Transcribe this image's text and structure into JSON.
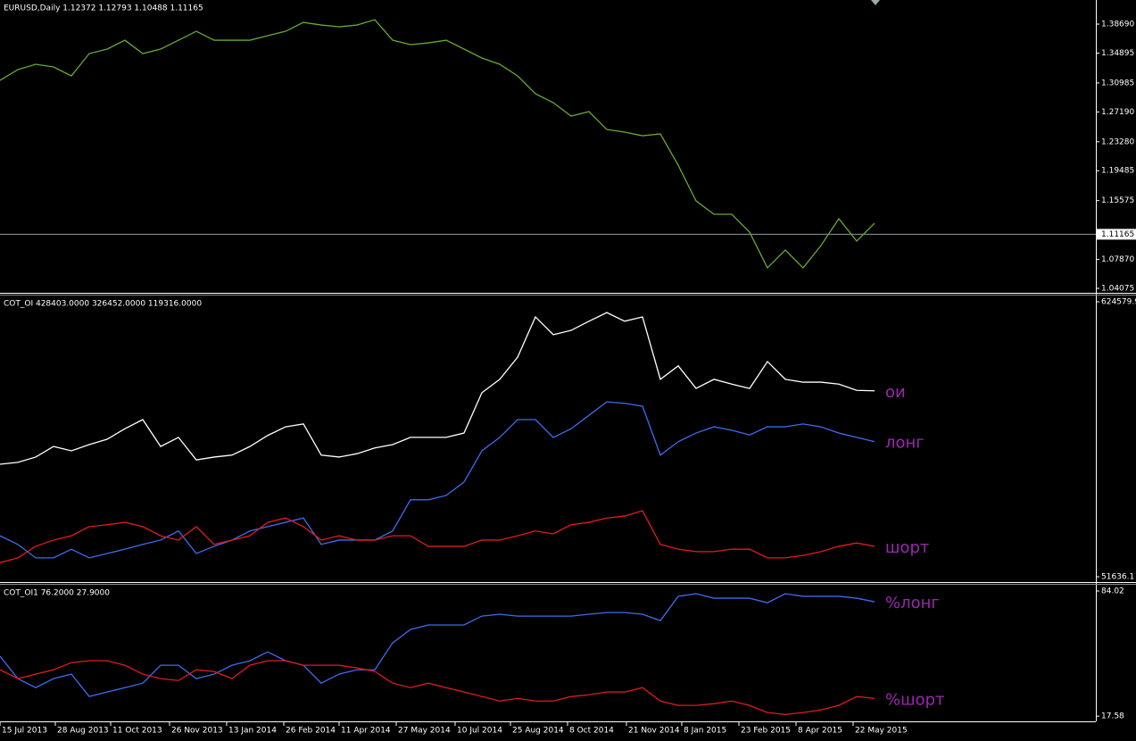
{
  "chart_data": [
    {
      "type": "line",
      "title": "EURUSD,Daily  1.12372 1.12793 1.10488 1.11165",
      "x": [
        0,
        10,
        20,
        30,
        40,
        50,
        60,
        70,
        80,
        90,
        100,
        110,
        120,
        130,
        140,
        150,
        160,
        170,
        180,
        190,
        200,
        210,
        220,
        230,
        240,
        250,
        260,
        270,
        280,
        290,
        300,
        310,
        320,
        330,
        340,
        350,
        360,
        370,
        380,
        390,
        400,
        410,
        420,
        430,
        440,
        450,
        460,
        470,
        480,
        490
      ],
      "values": [
        1.3132,
        1.3273,
        1.3343,
        1.3308,
        1.3191,
        1.3483,
        1.3542,
        1.3658,
        1.3483,
        1.3542,
        1.3658,
        1.3775,
        1.3658,
        1.3658,
        1.3658,
        1.3717,
        1.3775,
        1.3892,
        1.3857,
        1.3834,
        1.3857,
        1.3927,
        1.3658,
        1.36,
        1.3623,
        1.3658,
        1.3542,
        1.3425,
        1.3343,
        1.3191,
        1.2957,
        1.284,
        1.2664,
        1.2723,
        1.2489,
        1.2454,
        1.2407,
        1.2431,
        1.2021,
        1.1553,
        1.1378,
        1.1378,
        1.1144,
        1.0676,
        1.091,
        1.0676,
        1.0969,
        1.132,
        1.1027,
        1.1261
      ],
      "color": "#66aa33",
      "price_line": 1.11165,
      "xlim": [
        0,
        614
      ],
      "ylim": [
        1.0361,
        1.4185
      ],
      "yticks": [
        {
          "value": 1.3869,
          "label": "1.38690"
        },
        1.34895,
        1.30985,
        {
          "value": 1.2719,
          "label": "1.27190"
        },
        {
          "value": 1.2328,
          "label": "1.23280"
        },
        1.19485,
        1.15575,
        1.11165,
        {
          "value": 1.0787,
          "label": "1.07870"
        },
        1.04075
      ]
    },
    {
      "type": "line",
      "title": "COT_OI 428403.0000 326452.0000 119316.0000",
      "x": [
        0,
        10,
        20,
        30,
        40,
        50,
        60,
        70,
        80,
        90,
        100,
        110,
        120,
        130,
        140,
        150,
        160,
        170,
        180,
        190,
        200,
        210,
        220,
        230,
        240,
        250,
        260,
        270,
        280,
        290,
        300,
        310,
        320,
        330,
        340,
        350,
        360,
        370,
        380,
        390,
        400,
        410,
        420,
        430,
        440,
        450,
        460,
        470,
        480,
        490
      ],
      "series": [
        {
          "name": "ои",
          "color": "#ffffff",
          "values": [
            286000,
            290000,
            301000,
            323000,
            314000,
            327000,
            338000,
            360000,
            379000,
            323000,
            342000,
            295000,
            301000,
            305000,
            323000,
            346000,
            364000,
            370000,
            305000,
            301000,
            308000,
            320000,
            327000,
            342000,
            342000,
            342000,
            351000,
            435000,
            463000,
            509000,
            593000,
            556000,
            565000,
            584000,
            602000,
            584000,
            593000,
            463000,
            491000,
            444000,
            463000,
            453000,
            444000,
            500000,
            463000,
            457000,
            457000,
            453000,
            440000,
            439000
          ]
        },
        {
          "name": "лонг",
          "color": "#3d6cf0",
          "values": [
            137000,
            119000,
            91000,
            91000,
            109000,
            91000,
            100000,
            109000,
            119000,
            128000,
            147000,
            100000,
            115000,
            128000,
            147000,
            156000,
            165000,
            174000,
            119000,
            128000,
            128000,
            128000,
            147000,
            212000,
            212000,
            221000,
            249000,
            314000,
            342000,
            379000,
            379000,
            342000,
            360000,
            388000,
            416000,
            413000,
            407000,
            305000,
            333000,
            351000,
            364000,
            357000,
            347000,
            364000,
            364000,
            370000,
            364000,
            351000,
            342000,
            333000
          ]
        },
        {
          "name": "шорт",
          "color": "#e31b1b",
          "values": [
            81000,
            91000,
            115000,
            128000,
            137000,
            156000,
            160000,
            165000,
            156000,
            137000,
            128000,
            156000,
            119000,
            128000,
            137000,
            165000,
            174000,
            156000,
            128000,
            137000,
            128000,
            128000,
            137000,
            137000,
            115000,
            115000,
            115000,
            128000,
            128000,
            137000,
            147000,
            141000,
            160000,
            165000,
            174000,
            178000,
            189000,
            119000,
            109000,
            104000,
            104000,
            109000,
            109000,
            91000,
            91000,
            96000,
            104000,
            115000,
            122000,
            115000
          ]
        }
      ],
      "label_color": "#9c27b0",
      "xlim": [
        0,
        614
      ],
      "ylim": [
        40475,
        637600
      ],
      "yticks": [
        624579.9,
        51636.1
      ]
    },
    {
      "type": "line",
      "title": "COT_OI1 76.2000 27.9000",
      "x": [
        0,
        10,
        20,
        30,
        40,
        50,
        60,
        70,
        80,
        90,
        100,
        110,
        120,
        130,
        140,
        150,
        160,
        170,
        180,
        190,
        200,
        210,
        220,
        230,
        240,
        250,
        260,
        270,
        280,
        290,
        300,
        310,
        320,
        330,
        340,
        350,
        360,
        370,
        380,
        390,
        400,
        410,
        420,
        430,
        440,
        450,
        460,
        470,
        480,
        490
      ],
      "series": [
        {
          "name": "%лонг",
          "color": "#3d6cf0",
          "values": [
            49.4,
            37.5,
            32.7,
            37.5,
            39.9,
            28.0,
            30.4,
            32.7,
            35.1,
            44.6,
            44.6,
            37.5,
            39.9,
            44.6,
            47.0,
            51.7,
            47.0,
            44.6,
            35.1,
            39.9,
            42.2,
            42.2,
            56.5,
            63.6,
            66.0,
            66.0,
            66.0,
            70.7,
            71.7,
            70.7,
            70.7,
            70.7,
            70.7,
            71.7,
            72.6,
            72.6,
            71.7,
            68.3,
            81.2,
            82.6,
            80.2,
            80.2,
            80.2,
            77.8,
            82.6,
            81.2,
            81.2,
            81.2,
            80.2,
            78.3
          ]
        },
        {
          "name": "%шорт",
          "color": "#e31b1b",
          "values": [
            42.2,
            37.5,
            39.9,
            42.2,
            46.0,
            47.0,
            47.0,
            44.6,
            39.9,
            37.5,
            36.5,
            42.2,
            41.3,
            37.5,
            44.6,
            47.0,
            47.0,
            44.6,
            44.6,
            44.6,
            43.2,
            41.3,
            35.1,
            32.7,
            35.1,
            32.7,
            30.4,
            28.0,
            25.6,
            27.0,
            25.6,
            25.6,
            28.0,
            28.9,
            30.4,
            30.4,
            32.7,
            25.6,
            23.3,
            23.3,
            24.2,
            25.6,
            23.3,
            19.5,
            18.5,
            19.5,
            20.9,
            23.3,
            28.0,
            27.0
          ]
        }
      ],
      "label_color": "#9c27b0",
      "xlim": [
        0,
        614
      ],
      "ylim": [
        14.81,
        87.34
      ],
      "yticks": [
        84.02,
        17.58
      ],
      "xticks": [
        {
          "value": 0,
          "label": "15 Jul 2013"
        },
        {
          "value": 31,
          "label": "28 Aug 2013"
        },
        {
          "value": 62,
          "label": "11 Oct 2013"
        },
        {
          "value": 95,
          "label": "26 Nov 2013"
        },
        {
          "value": 127,
          "label": "13 Jan 2014"
        },
        {
          "value": 159,
          "label": "26 Feb 2014"
        },
        {
          "value": 190,
          "label": "11 Apr 2014"
        },
        {
          "value": 222,
          "label": "27 May 2014"
        },
        {
          "value": 255,
          "label": "10 Jul 2014"
        },
        {
          "value": 286,
          "label": "25 Aug 2014"
        },
        {
          "value": 318,
          "label": "8 Oct 2014"
        },
        {
          "value": 351,
          "label": "21 Nov 2014"
        },
        {
          "value": 382,
          "label": "8 Jan 2015"
        },
        {
          "value": 414,
          "label": "23 Feb 2015"
        },
        {
          "value": 446,
          "label": "8 Apr 2015"
        },
        {
          "value": 478,
          "label": "22 May 2015"
        }
      ]
    }
  ]
}
